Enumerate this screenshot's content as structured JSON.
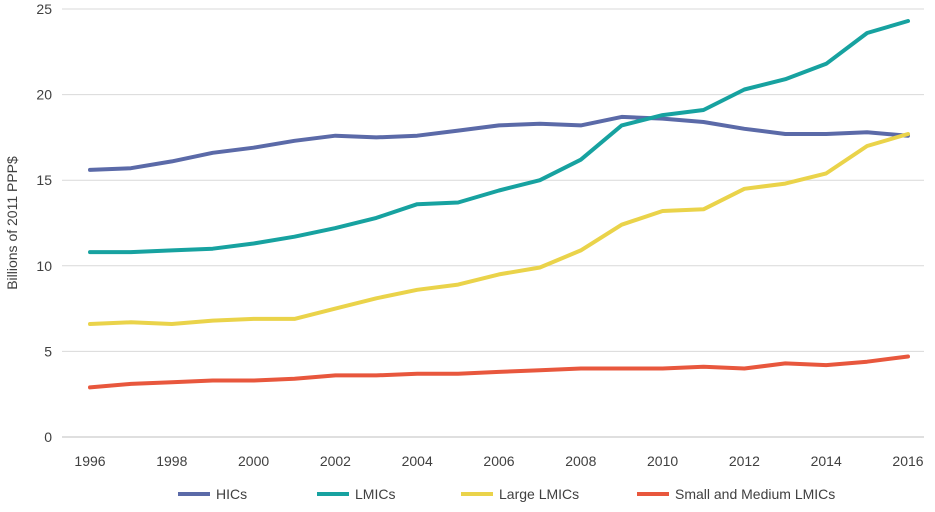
{
  "chart_data": {
    "type": "line",
    "title": "",
    "xlabel": "",
    "ylabel": "Billions of 2011 PPP$",
    "x": [
      1996,
      1997,
      1998,
      1999,
      2000,
      2001,
      2002,
      2003,
      2004,
      2005,
      2006,
      2007,
      2008,
      2009,
      2010,
      2011,
      2012,
      2013,
      2014,
      2015,
      2016
    ],
    "x_ticks": [
      "1996",
      "1998",
      "2000",
      "2002",
      "2004",
      "2006",
      "2008",
      "2010",
      "2012",
      "2014",
      "2016"
    ],
    "x_tick_values": [
      1996,
      1998,
      2000,
      2002,
      2004,
      2006,
      2008,
      2010,
      2012,
      2014,
      2016
    ],
    "ylim": [
      0,
      25
    ],
    "y_ticks": [
      "0",
      "5",
      "10",
      "15",
      "20",
      "25"
    ],
    "y_tick_values": [
      0,
      5,
      10,
      15,
      20,
      25
    ],
    "grid": true,
    "legend_position": "bottom",
    "series": [
      {
        "name": "HICs",
        "color": "#5b6aa8",
        "values": [
          15.6,
          15.7,
          16.1,
          16.6,
          16.9,
          17.3,
          17.6,
          17.5,
          17.6,
          17.9,
          18.2,
          18.3,
          18.2,
          18.7,
          18.6,
          18.4,
          18.0,
          17.7,
          17.7,
          17.8,
          17.6
        ]
      },
      {
        "name": "LMICs",
        "color": "#17a2a0",
        "values": [
          10.8,
          10.8,
          10.9,
          11.0,
          11.3,
          11.7,
          12.2,
          12.8,
          13.6,
          13.7,
          14.4,
          15.0,
          16.2,
          18.2,
          18.8,
          19.1,
          20.3,
          20.9,
          21.8,
          23.6,
          24.3
        ]
      },
      {
        "name": "Large LMICs",
        "color": "#ead34a",
        "values": [
          6.6,
          6.7,
          6.6,
          6.8,
          6.9,
          6.9,
          7.5,
          8.1,
          8.6,
          8.9,
          9.5,
          9.9,
          10.9,
          12.4,
          13.2,
          13.3,
          14.5,
          14.8,
          15.4,
          17.0,
          17.7
        ]
      },
      {
        "name": "Small and Medium LMICs",
        "color": "#e8573d",
        "values": [
          2.9,
          3.1,
          3.2,
          3.3,
          3.3,
          3.4,
          3.6,
          3.6,
          3.7,
          3.7,
          3.8,
          3.9,
          4.0,
          4.0,
          4.0,
          4.1,
          4.0,
          4.3,
          4.2,
          4.4,
          4.7
        ]
      }
    ]
  }
}
